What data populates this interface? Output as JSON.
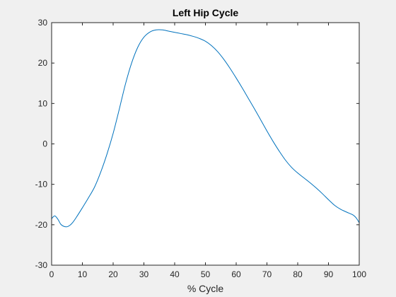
{
  "colors": {
    "figure_background": "#f0f0f0",
    "axes_background": "#ffffff",
    "axes_line": "#262626",
    "series": "#0072bd"
  },
  "chart_data": {
    "type": "line",
    "title": "Left Hip Cycle",
    "xlabel": "% Cycle",
    "ylabel": "",
    "xlim": [
      0,
      100
    ],
    "ylim": [
      -30,
      30
    ],
    "xticks": [
      "0",
      "10",
      "20",
      "30",
      "40",
      "50",
      "60",
      "70",
      "80",
      "90",
      "100"
    ],
    "yticks": [
      "30",
      "20",
      "10",
      "0",
      "-10",
      "-20",
      "-30"
    ],
    "grid": false,
    "legend": false,
    "series": [
      {
        "color": "#0072bd",
        "x": [
          0,
          1,
          2,
          3,
          4,
          5,
          6,
          7,
          8,
          10,
          12,
          14,
          16,
          18,
          20,
          22,
          24,
          26,
          28,
          30,
          32,
          34,
          36,
          38,
          40,
          42,
          44,
          46,
          48,
          50,
          52,
          54,
          56,
          58,
          60,
          62,
          64,
          66,
          68,
          70,
          72,
          74,
          76,
          78,
          80,
          82,
          84,
          86,
          88,
          90,
          92,
          94,
          96,
          98,
          99,
          100
        ],
        "y": [
          -18.5,
          -17.8,
          -18.6,
          -19.9,
          -20.4,
          -20.5,
          -20.1,
          -19.3,
          -18.2,
          -15.8,
          -13.3,
          -10.6,
          -6.9,
          -2.5,
          2.6,
          8.6,
          14.8,
          20.0,
          23.9,
          26.4,
          27.7,
          28.2,
          28.2,
          27.9,
          27.6,
          27.3,
          27.0,
          26.6,
          26.1,
          25.4,
          24.3,
          22.8,
          20.9,
          18.7,
          16.3,
          13.8,
          11.2,
          8.6,
          5.9,
          3.2,
          0.6,
          -1.8,
          -4.0,
          -5.8,
          -7.2,
          -8.4,
          -9.6,
          -10.9,
          -12.3,
          -13.8,
          -15.2,
          -16.2,
          -16.9,
          -17.6,
          -18.3,
          -19.5
        ]
      }
    ]
  }
}
